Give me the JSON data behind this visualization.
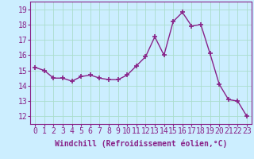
{
  "x": [
    0,
    1,
    2,
    3,
    4,
    5,
    6,
    7,
    8,
    9,
    10,
    11,
    12,
    13,
    14,
    15,
    16,
    17,
    18,
    19,
    20,
    21,
    22,
    23
  ],
  "y": [
    15.2,
    15.0,
    14.5,
    14.5,
    14.3,
    14.6,
    14.7,
    14.5,
    14.4,
    14.4,
    14.7,
    15.3,
    15.9,
    17.2,
    16.0,
    18.2,
    18.8,
    17.9,
    18.0,
    16.1,
    14.1,
    13.1,
    13.0,
    12.0
  ],
  "line_color": "#882288",
  "marker": "+",
  "marker_size": 4,
  "background_color": "#cceeff",
  "grid_color": "#aaddcc",
  "xlabel": "Windchill (Refroidissement éolien,°C)",
  "ylim": [
    11.5,
    19.5
  ],
  "xlim": [
    -0.5,
    23.5
  ],
  "yticks": [
    12,
    13,
    14,
    15,
    16,
    17,
    18,
    19
  ],
  "xtick_labels": [
    "0",
    "1",
    "2",
    "3",
    "4",
    "5",
    "6",
    "7",
    "8",
    "9",
    "10",
    "11",
    "12",
    "13",
    "14",
    "15",
    "16",
    "17",
    "18",
    "19",
    "20",
    "21",
    "22",
    "23"
  ],
  "axis_fontsize": 7,
  "tick_fontsize": 7
}
